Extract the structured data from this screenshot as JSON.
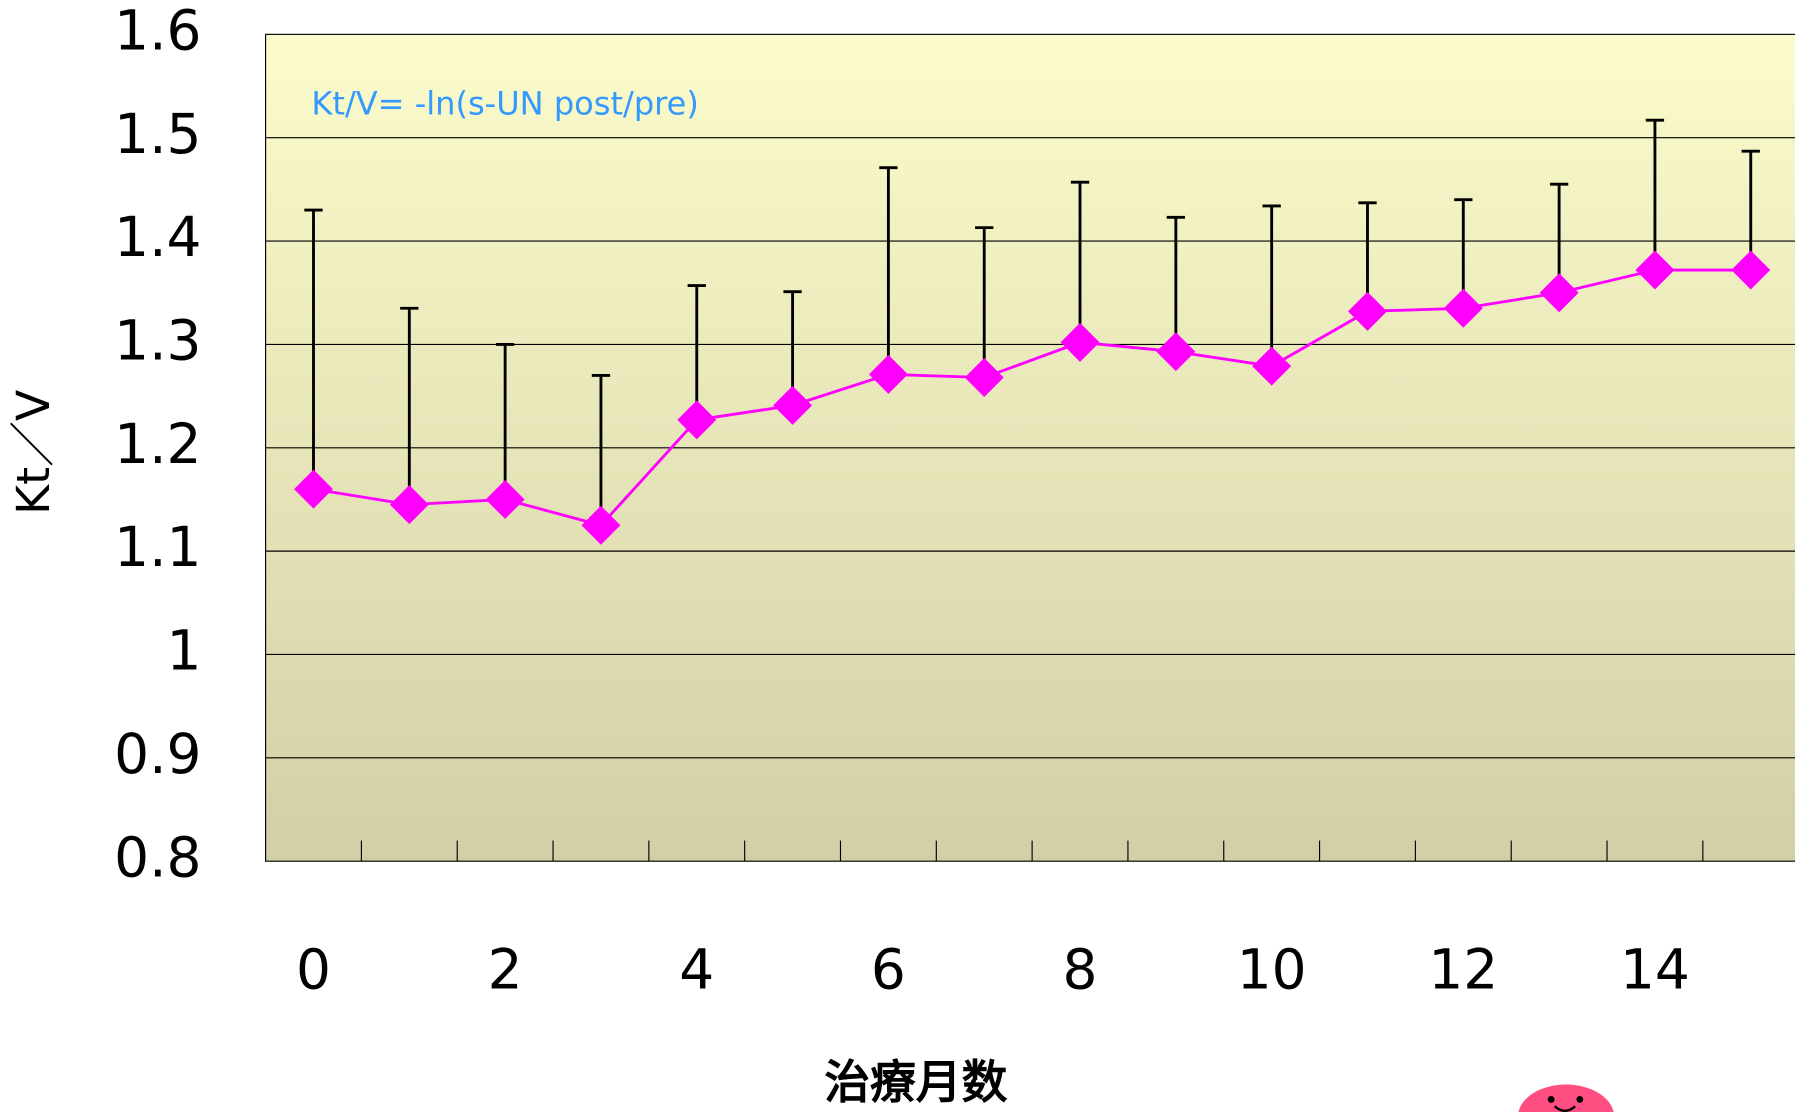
{
  "chart_data": {
    "type": "line",
    "y_label": "Kt／V",
    "x_label": "治療月数",
    "annotation": "Kt/V=  -ln(s-UN post/pre)",
    "categories": [
      "0",
      null,
      "2",
      null,
      "4",
      null,
      "6",
      null,
      "8",
      null,
      "10",
      null,
      "12",
      null,
      "14",
      null
    ],
    "values": [
      1.16,
      1.145,
      1.15,
      1.125,
      1.227,
      1.241,
      1.271,
      1.268,
      1.302,
      1.293,
      1.279,
      1.332,
      1.335,
      1.35,
      1.372,
      1.372
    ],
    "errors": [
      0.27,
      0.19,
      0.15,
      0.145,
      0.13,
      0.11,
      0.2,
      0.145,
      0.155,
      0.13,
      0.155,
      0.105,
      0.105,
      0.105,
      0.145,
      0.115
    ],
    "color": "#ff00ff",
    "error_color": "#000000",
    "ylim": [
      0.8,
      1.6
    ],
    "yticks": [
      0.8,
      0.9,
      1,
      1.1,
      1.2,
      1.3,
      1.4,
      1.5,
      1.6
    ],
    "grid": true
  }
}
